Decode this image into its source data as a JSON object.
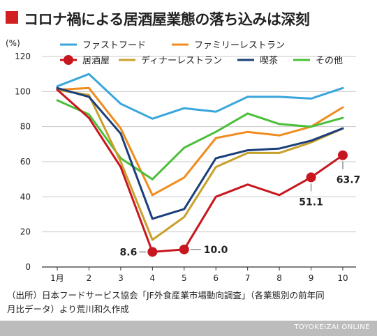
{
  "title": "コロナ禍による居酒屋業態の落ち込みは深刻",
  "source_line1": "（出所）日本フードサービス協会「JF外食産業市場動向調査」（各業態別の前年同",
  "source_line2": "月比データ）より荒川和久作成",
  "footer": "TOYOKEIZAI ONLINE",
  "colors": {
    "title_square": "#d21f1f",
    "fast_food": "#3aa6dc",
    "family_restaurant": "#f08c1e",
    "izakaya": "#c8161e",
    "dinner_restaurant": "#c8a02a",
    "kissa": "#1a3f7a",
    "other": "#4cbf3a"
  },
  "chart_data": {
    "type": "line",
    "ylabel": "(%)",
    "ylim": [
      0,
      120
    ],
    "yticks": [
      0,
      20,
      40,
      60,
      80,
      100,
      120
    ],
    "categories": [
      "1月",
      "2",
      "3",
      "4",
      "5",
      "6",
      "7",
      "8",
      "9",
      "10"
    ],
    "grid": "horizontal",
    "legend_position": "top",
    "series": [
      {
        "key": "fast_food",
        "name": "ファストフード",
        "values": [
          103,
          110,
          93,
          84.5,
          90.5,
          88.5,
          97,
          97,
          96,
          102
        ]
      },
      {
        "key": "family_restaurant",
        "name": "ファミリーレストラン",
        "values": [
          101,
          102,
          79,
          41,
          51,
          73.5,
          77,
          75,
          80,
          91
        ]
      },
      {
        "key": "izakaya",
        "name": "居酒屋",
        "values": [
          101,
          85,
          57,
          8.6,
          10.0,
          40,
          47,
          41,
          51.1,
          63.7
        ],
        "markers": true
      },
      {
        "key": "dinner_restaurant",
        "name": "ディナーレストラン",
        "values": [
          101,
          98,
          60,
          15.5,
          28.5,
          57,
          65,
          65,
          71,
          79
        ]
      },
      {
        "key": "kissa",
        "name": "喫茶",
        "values": [
          102,
          97,
          76,
          27.5,
          33,
          62,
          66.5,
          67.5,
          72,
          79
        ]
      },
      {
        "key": "other",
        "name": "その他",
        "values": [
          95,
          87,
          62,
          50,
          68,
          77,
          87.5,
          81.5,
          80,
          85
        ]
      }
    ],
    "annotations": [
      {
        "series": "izakaya",
        "index": 3,
        "label": "8.6"
      },
      {
        "series": "izakaya",
        "index": 4,
        "label": "10.0"
      },
      {
        "series": "izakaya",
        "index": 8,
        "label": "51.1"
      },
      {
        "series": "izakaya",
        "index": 9,
        "label": "63.7"
      }
    ]
  }
}
